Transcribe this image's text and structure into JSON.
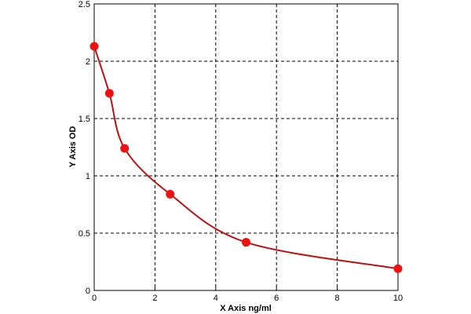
{
  "chart_data": {
    "type": "scatter",
    "xlabel": "X Axis ng/ml",
    "ylabel": "Y Axis OD",
    "xlim": [
      0,
      10
    ],
    "ylim": [
      0,
      2.5
    ],
    "x_ticks": [
      0,
      2,
      4,
      6,
      8,
      10
    ],
    "y_ticks": [
      0,
      0.5,
      1,
      1.5,
      2,
      2.5
    ],
    "grid": true,
    "legend": "none",
    "points": {
      "x": [
        0,
        0.5,
        1,
        2.5,
        5,
        10
      ],
      "y": [
        2.13,
        1.72,
        1.24,
        0.84,
        0.42,
        0.19
      ]
    },
    "fit_curve": true,
    "colors": {
      "points": "#ee1111",
      "curve": "#bb1111",
      "grid": "#000000"
    }
  }
}
